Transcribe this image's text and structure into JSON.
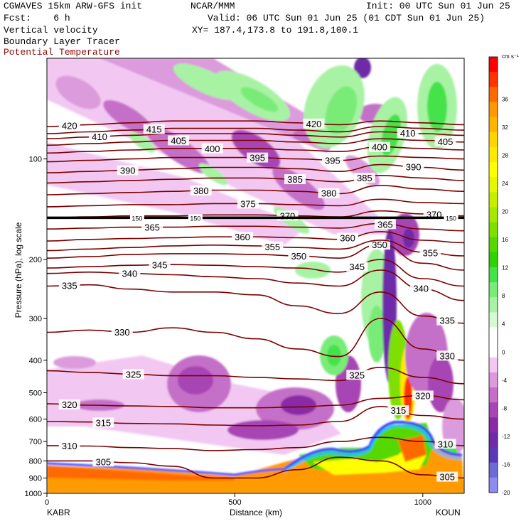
{
  "header": {
    "model": "CGWAVES 15km ARW-GFS init",
    "fcst": "Fcst:    6 h",
    "org": "NCAR/MMM",
    "init": "Init: 00 UTC Sun 01 Jun 25",
    "valid": "Valid: 06 UTC Sun 01 Jun 25 (01 CDT Sun 01 Jun 25)",
    "xy": "XY= 187.4,173.8 to 191.8,100.1",
    "fields": [
      "Vertical velocity",
      "Boundary Layer Tracer",
      "Potential Temperature"
    ]
  },
  "colors": {
    "theta_contour": "#7a0000",
    "tropopause_line": "#000000",
    "header_theta_label": "#8a0a0a"
  },
  "chart_data": {
    "type": "heatmap",
    "x_axis": {
      "label": "Distance (km)",
      "range": [
        0,
        1110
      ],
      "ticks": [
        0,
        500,
        1000
      ],
      "end_labels": [
        "KABR",
        "KOUN"
      ]
    },
    "y_axis": {
      "label": "Pressure (hPa), log scale",
      "scale": "log",
      "range": [
        1000,
        50
      ],
      "ticks": [
        100,
        200,
        300,
        400,
        500,
        600,
        700,
        800,
        900,
        1000
      ]
    },
    "colorbar": {
      "units": "cm s⁻¹",
      "tick_labels": [
        36,
        32,
        28,
        24,
        20,
        16,
        12,
        8,
        4,
        0,
        -4,
        -8,
        -12,
        -16,
        -20
      ],
      "bins": [
        {
          "min": 40,
          "color": "#ff0000"
        },
        {
          "min": 36,
          "color": "#ff3300"
        },
        {
          "min": 32,
          "color": "#ff6a00"
        },
        {
          "min": 30,
          "color": "#ff9a00"
        },
        {
          "min": 28,
          "color": "#ffb400"
        },
        {
          "min": 26,
          "color": "#ffd400"
        },
        {
          "min": 24,
          "color": "#ffe900"
        },
        {
          "min": 22,
          "color": "#ffff00"
        },
        {
          "min": 20,
          "color": "#e6f700"
        },
        {
          "min": 18,
          "color": "#c6ef00"
        },
        {
          "min": 16,
          "color": "#a6e800"
        },
        {
          "min": 14,
          "color": "#7fe000"
        },
        {
          "min": 12,
          "color": "#55d800"
        },
        {
          "min": 10,
          "color": "#2ed400"
        },
        {
          "min": 8,
          "color": "#44e24a"
        },
        {
          "min": 6,
          "color": "#79ec78"
        },
        {
          "min": 4,
          "color": "#a8f2a4"
        },
        {
          "min": 2,
          "color": "#d6f9d2"
        },
        {
          "min": 0,
          "color": "#ffffff"
        },
        {
          "min": -2,
          "color": "#ffffff"
        },
        {
          "min": -4,
          "color": "#f2c8f2"
        },
        {
          "min": -6,
          "color": "#dc9bdc"
        },
        {
          "min": -8,
          "color": "#c56fc8"
        },
        {
          "min": -10,
          "color": "#a845b4"
        },
        {
          "min": -12,
          "color": "#8a2aa6"
        },
        {
          "min": -14,
          "color": "#6e2aa8"
        },
        {
          "min": -16,
          "color": "#5a38b8"
        },
        {
          "min": -18,
          "color": "#6c6cd6"
        },
        {
          "min": -20,
          "color": "#8c8cf0"
        }
      ]
    },
    "theta_contours": [
      {
        "k": 305,
        "p": [
          800,
          800,
          810,
          830,
          900,
          900,
          850,
          780,
          800,
          880,
          900
        ],
        "labels": [
          [
            150,
            305
          ],
          [
            1065,
            305
          ]
        ]
      },
      {
        "k": 310,
        "p": [
          720,
          722,
          730,
          735,
          745,
          740,
          730,
          700,
          680,
          700,
          720
        ],
        "labels": [
          [
            60,
            310
          ],
          [
            1060,
            310
          ]
        ]
      },
      {
        "k": 315,
        "p": [
          610,
          612,
          618,
          620,
          625,
          628,
          625,
          610,
          550,
          585,
          600
        ],
        "labels": [
          [
            150,
            315
          ],
          [
            935,
            315
          ]
        ]
      },
      {
        "k": 320,
        "p": [
          540,
          545,
          548,
          550,
          555,
          555,
          552,
          545,
          520,
          510,
          525
        ],
        "labels": [
          [
            60,
            320
          ],
          [
            1000,
            320
          ]
        ]
      },
      {
        "k": 325,
        "p": [
          430,
          435,
          440,
          445,
          445,
          450,
          455,
          460,
          420,
          450,
          470
        ],
        "labels": [
          [
            230,
            325
          ],
          [
            825,
            325
          ]
        ]
      },
      {
        "k": 330,
        "p": [
          330,
          325,
          330,
          320,
          330,
          345,
          370,
          390,
          300,
          370,
          400
        ],
        "labels": [
          [
            200,
            330
          ],
          [
            1065,
            330
          ]
        ]
      },
      {
        "k": 335,
        "p": [
          240,
          238,
          245,
          250,
          250,
          255,
          275,
          290,
          250,
          295,
          310
        ],
        "labels": [
          [
            60,
            335
          ],
          [
            1065,
            335
          ]
        ]
      },
      {
        "k": 340,
        "p": [
          220,
          218,
          220,
          222,
          225,
          228,
          235,
          240,
          215,
          245,
          265
        ],
        "labels": [
          [
            220,
            340
          ],
          [
            995,
            340
          ]
        ]
      },
      {
        "k": 345,
        "p": [
          212,
          210,
          208,
          207,
          208,
          210,
          212,
          218,
          200,
          228,
          240
        ],
        "labels": [
          [
            300,
            345
          ],
          [
            825,
            345
          ]
        ]
      },
      {
        "k": 350,
        "p": [
          198,
          196,
          193,
          192,
          192,
          193,
          195,
          198,
          180,
          205,
          215
        ],
        "labels": [
          [
            670,
            350
          ],
          [
            885,
            350
          ]
        ]
      },
      {
        "k": 355,
        "p": [
          188,
          186,
          184,
          182,
          181,
          182,
          184,
          186,
          175,
          190,
          195
        ],
        "labels": [
          [
            600,
            355
          ],
          [
            1020,
            355
          ]
        ]
      },
      {
        "k": 360,
        "p": [
          176,
          174,
          173,
          172,
          171,
          171,
          172,
          174,
          165,
          175,
          178
        ],
        "labels": [
          [
            520,
            360
          ],
          [
            800,
            360
          ]
        ]
      },
      {
        "k": 365,
        "p": [
          162,
          161,
          160,
          160,
          159,
          159,
          160,
          161,
          156,
          162,
          164
        ],
        "labels": [
          [
            280,
            365
          ],
          [
            900,
            365
          ]
        ]
      },
      {
        "k": 370,
        "p": [
          150,
          149,
          148,
          148,
          147,
          147,
          148,
          149,
          143,
          146,
          148
        ],
        "labels": [
          [
            640,
            370
          ],
          [
            1030,
            370
          ]
        ]
      },
      {
        "k": 375,
        "p": [
          139,
          138,
          137,
          137,
          136,
          136,
          137,
          138,
          132,
          135,
          136
        ],
        "labels": [
          [
            535,
            375
          ]
        ]
      },
      {
        "k": 380,
        "p": [
          128,
          127,
          126,
          125,
          124,
          124,
          125,
          127,
          120,
          123,
          125
        ],
        "labels": [
          [
            410,
            380
          ],
          [
            750,
            380
          ]
        ]
      },
      {
        "k": 385,
        "p": [
          118,
          117,
          116,
          115,
          114,
          114,
          115,
          117,
          112,
          114,
          116
        ],
        "labels": [
          [
            660,
            385
          ],
          [
            845,
            385
          ]
        ]
      },
      {
        "k": 390,
        "p": [
          110,
          109,
          108,
          107,
          106,
          106,
          107,
          109,
          104,
          106,
          108
        ],
        "labels": [
          [
            215,
            390
          ],
          [
            975,
            390
          ]
        ]
      },
      {
        "k": 395,
        "p": [
          102,
          101,
          100,
          99,
          99,
          99,
          100,
          101,
          98,
          99,
          100
        ],
        "labels": [
          [
            560,
            395
          ],
          [
            760,
            395
          ]
        ]
      },
      {
        "k": 400,
        "p": [
          96,
          95,
          94,
          93,
          93,
          93,
          94,
          95,
          92,
          93,
          94
        ],
        "labels": [
          [
            440,
            400
          ],
          [
            885,
            400
          ]
        ]
      },
      {
        "k": 405,
        "p": [
          91,
          90,
          89,
          88,
          88,
          88,
          89,
          90,
          87,
          88,
          89
        ],
        "labels": [
          [
            350,
            405
          ],
          [
            1060,
            405
          ]
        ]
      },
      {
        "k": 410,
        "p": [
          87,
          86,
          85,
          84,
          84,
          84,
          85,
          86,
          83,
          84,
          85
        ],
        "labels": [
          [
            140,
            410
          ],
          [
            960,
            410
          ]
        ]
      },
      {
        "k": 415,
        "p": [
          84,
          83,
          82,
          81,
          81,
          81,
          82,
          83,
          80,
          81,
          82
        ],
        "labels": [
          [
            285,
            415
          ]
        ]
      },
      {
        "k": 420,
        "p": [
          80,
          79,
          78,
          77,
          77,
          77,
          78,
          79,
          77,
          78,
          79
        ],
        "labels": [
          [
            60,
            420
          ],
          [
            710,
            420
          ]
        ]
      }
    ],
    "tropopause": {
      "p": 150,
      "labels": [
        [
          240,
          150
        ],
        [
          395,
          150
        ],
        [
          1075,
          150
        ]
      ]
    }
  }
}
